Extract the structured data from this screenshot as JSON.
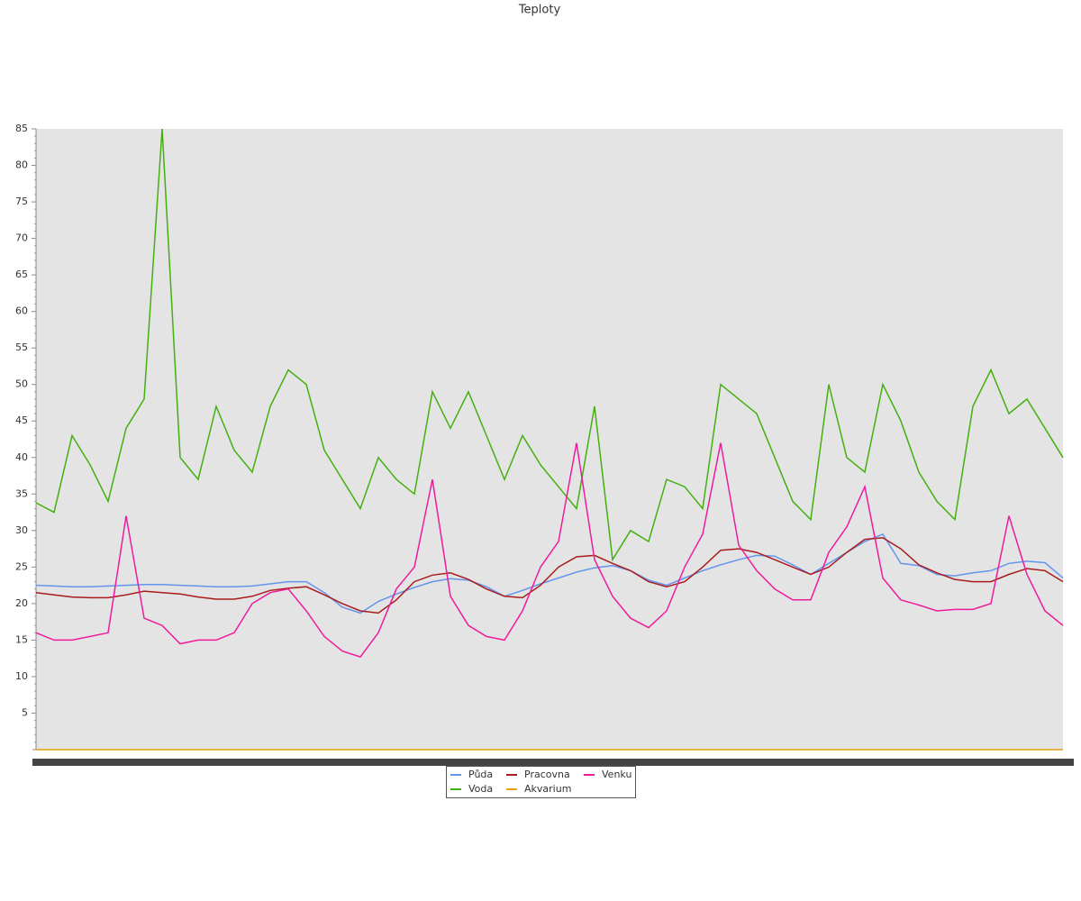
{
  "chart_data": {
    "type": "line",
    "title": "Teploty",
    "ylim": [
      0,
      85
    ],
    "yticks": [
      5,
      10,
      15,
      20,
      25,
      30,
      35,
      40,
      45,
      50,
      55,
      60,
      65,
      70,
      75,
      80,
      85
    ],
    "legend": "bottom",
    "series": [
      {
        "name": "Půda",
        "color": "#6495ed",
        "values": [
          22.5,
          22.4,
          22.3,
          22.3,
          22.4,
          22.5,
          22.6,
          22.6,
          22.5,
          22.4,
          22.3,
          22.3,
          22.4,
          22.7,
          23,
          23,
          21.5,
          19.5,
          18.7,
          20.3,
          21.3,
          22.2,
          23,
          23.4,
          23.2,
          22.3,
          21,
          21.8,
          22.7,
          23.5,
          24.3,
          24.9,
          25.2,
          24.5,
          23.2,
          22.5,
          23.5,
          24.5,
          25.3,
          26,
          26.6,
          26.5,
          25.3,
          24,
          25.5,
          27,
          28.5,
          29.5,
          25.5,
          25.2,
          24,
          23.8,
          24.2,
          24.5,
          25.5,
          25.8,
          25.6,
          23.5
        ]
      },
      {
        "name": "Voda",
        "color": "#44b010",
        "values": [
          33.8,
          32.5,
          43,
          39,
          34,
          44,
          48,
          85,
          40,
          37,
          47,
          41,
          38,
          47,
          52,
          50,
          41,
          37,
          33,
          40,
          37,
          35,
          49,
          44,
          49,
          43,
          37,
          43,
          39,
          36,
          33,
          47,
          26,
          30,
          28.5,
          37,
          36,
          33,
          50,
          48,
          46,
          40,
          34,
          31.5,
          50,
          40,
          38,
          50,
          45,
          38,
          34,
          31.5,
          47,
          52,
          46,
          48,
          44,
          40
        ]
      },
      {
        "name": "Pracovna",
        "color": "#a81c1c",
        "values": [
          21.5,
          21.2,
          20.9,
          20.8,
          20.8,
          21.2,
          21.7,
          21.5,
          21.3,
          20.9,
          20.6,
          20.6,
          21,
          21.8,
          22.1,
          22.3,
          21.2,
          20,
          19,
          18.7,
          20.5,
          23,
          23.9,
          24.2,
          23.3,
          22,
          21,
          20.8,
          22.5,
          25,
          26.4,
          26.6,
          25.5,
          24.5,
          23,
          22.3,
          23,
          25,
          27.3,
          27.5,
          27,
          26,
          25,
          24,
          25,
          27,
          28.8,
          29,
          27.5,
          25.3,
          24.2,
          23.3,
          23,
          23,
          24,
          24.8,
          24.5,
          23
        ]
      },
      {
        "name": "Akvarium",
        "color": "#e8a000",
        "values": [
          0,
          0,
          0,
          0,
          0,
          0,
          0,
          0,
          0,
          0,
          0,
          0,
          0,
          0,
          0,
          0,
          0,
          0,
          0,
          0,
          0,
          0,
          0,
          0,
          0,
          0,
          0,
          0,
          0,
          0,
          0,
          0,
          0,
          0,
          0,
          0,
          0,
          0,
          0,
          0,
          0,
          0,
          0,
          0,
          0,
          0,
          0,
          0,
          0,
          0,
          0,
          0,
          0,
          0,
          0,
          0,
          0,
          0
        ]
      },
      {
        "name": "Venku",
        "color": "#ee1c9c",
        "values": [
          16,
          15,
          15,
          15.5,
          16,
          32,
          18,
          17,
          14.5,
          15,
          15,
          16,
          20,
          21.5,
          22,
          19,
          15.5,
          13.5,
          12.7,
          16,
          22,
          25,
          37,
          21,
          17,
          15.5,
          15,
          19,
          25,
          28.5,
          42,
          26,
          21,
          18,
          16.7,
          19,
          25,
          29.5,
          42,
          28,
          24.5,
          22,
          20.5,
          20.5,
          27,
          30.5,
          36,
          23.5,
          20.5,
          19.8,
          19,
          19.2,
          19.2,
          20,
          32,
          24,
          19,
          17
        ]
      }
    ]
  }
}
